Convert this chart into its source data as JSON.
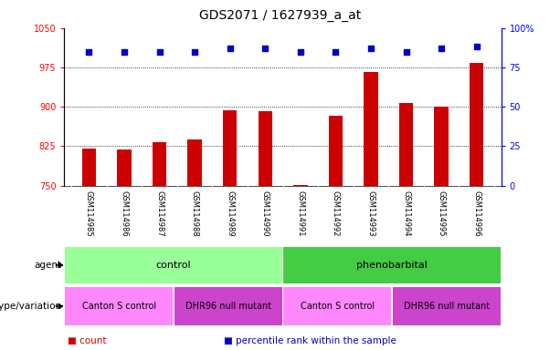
{
  "title": "GDS2071 / 1627939_a_at",
  "samples": [
    "GSM114985",
    "GSM114986",
    "GSM114987",
    "GSM114988",
    "GSM114989",
    "GSM114990",
    "GSM114991",
    "GSM114992",
    "GSM114993",
    "GSM114994",
    "GSM114995",
    "GSM114996"
  ],
  "counts": [
    820,
    818,
    833,
    838,
    893,
    891,
    751,
    882,
    966,
    908,
    900,
    983
  ],
  "percentile_ranks": [
    85,
    85,
    85,
    85,
    87,
    87,
    85,
    85,
    87,
    85,
    87,
    88
  ],
  "ylim_left": [
    750,
    1050
  ],
  "ylim_right": [
    0,
    100
  ],
  "yticks_left": [
    750,
    825,
    900,
    975,
    1050
  ],
  "yticks_right": [
    0,
    25,
    50,
    75,
    100
  ],
  "bar_color": "#cc0000",
  "dot_color": "#0000cc",
  "agent_labels": [
    {
      "label": "control",
      "start": 0,
      "end": 6,
      "color": "#99ff99"
    },
    {
      "label": "phenobarbital",
      "start": 6,
      "end": 12,
      "color": "#44cc44"
    }
  ],
  "genotype_labels": [
    {
      "label": "Canton S control",
      "start": 0,
      "end": 3,
      "color": "#ff88ff"
    },
    {
      "label": "DHR96 null mutant",
      "start": 3,
      "end": 6,
      "color": "#cc44cc"
    },
    {
      "label": "Canton S control",
      "start": 6,
      "end": 9,
      "color": "#ff88ff"
    },
    {
      "label": "DHR96 null mutant",
      "start": 9,
      "end": 12,
      "color": "#cc44cc"
    }
  ],
  "agent_row_label": "agent",
  "genotype_row_label": "genotype/variation",
  "legend_items": [
    {
      "color": "#cc0000",
      "label": "count"
    },
    {
      "color": "#0000cc",
      "label": "percentile rank within the sample"
    }
  ],
  "bg_color": "#ffffff",
  "tick_bg_color": "#cccccc",
  "title_fontsize": 10,
  "tick_fontsize": 7,
  "label_fontsize": 7.5,
  "bar_width": 0.4
}
